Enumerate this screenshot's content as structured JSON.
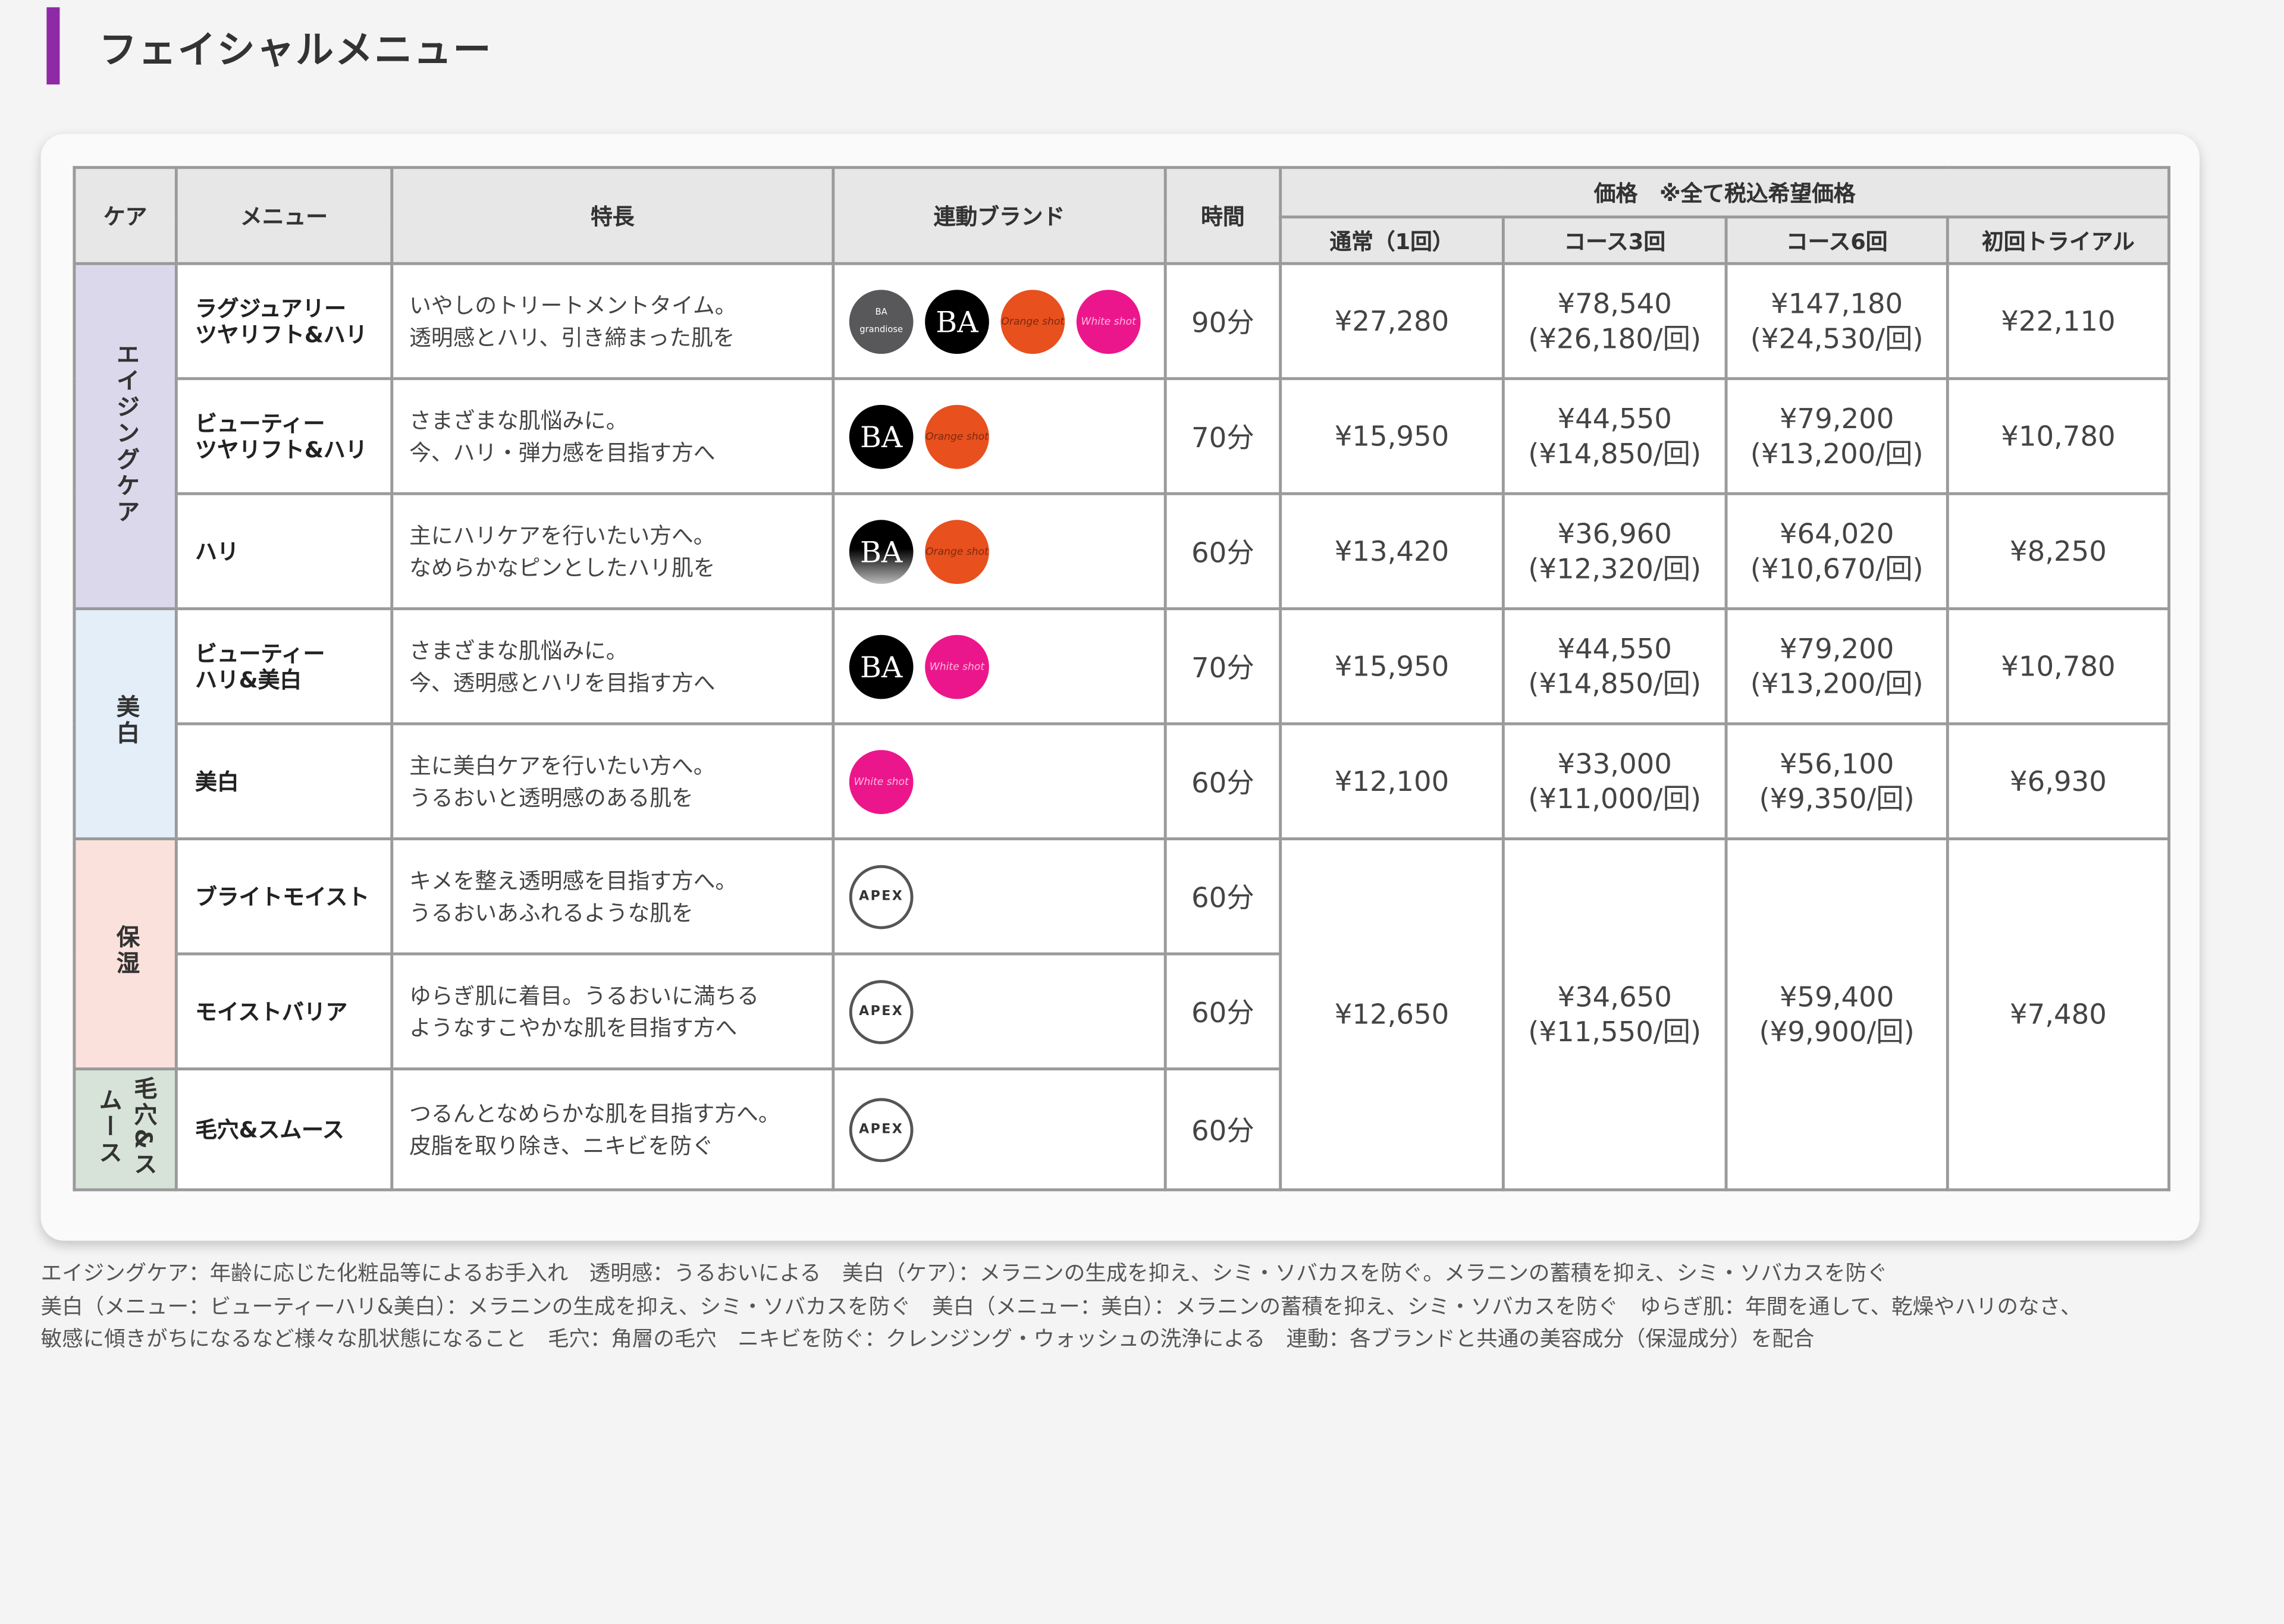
{
  "page_title": "フェイシャルメニュー",
  "colors": {
    "accent": "#8e2aa6",
    "aging": "#dcd8ec",
    "whitening": "#e3eef9",
    "moisture": "#fbe1dc",
    "pore": "#d7e3d9",
    "header": "#e7e7e7"
  },
  "headers": {
    "care": "ケア",
    "menu": "メニュー",
    "feature": "特長",
    "brand": "連動ブランド",
    "time": "時間",
    "price": "価格　※全て税込希望価格",
    "regular": "通常（1回）",
    "course3": "コース3回",
    "course6": "コース6回",
    "trial": "初回トライアル"
  },
  "categories": [
    {
      "label": "エイジングケア"
    },
    {
      "label": "美白"
    },
    {
      "label": "保湿"
    },
    {
      "label": "毛穴&スムース"
    }
  ],
  "rows": [
    {
      "menu": [
        "ラグジュアリー",
        "ツヤリフト&ハリ"
      ],
      "feature": [
        "いやしのトリートメントタイム。",
        "透明感とハリ、引き締まった肌を"
      ],
      "brands": [
        "grandiose-logo",
        "ba-logo",
        "orange-logo",
        "white-shot-logo"
      ],
      "time": "90分",
      "regular": "¥27,280",
      "course3": [
        "¥78,540",
        "(¥26,180/回)"
      ],
      "course6": [
        "¥147,180",
        "(¥24,530/回)"
      ],
      "trial": "¥22,110"
    },
    {
      "menu": [
        "ビューティー",
        "ツヤリフト&ハリ"
      ],
      "feature": [
        "さまざまな肌悩みに。",
        "今、ハリ・弾力感を目指す方へ"
      ],
      "brands": [
        "ba-logo",
        "orange-logo"
      ],
      "time": "70分",
      "regular": "¥15,950",
      "course3": [
        "¥44,550",
        "(¥14,850/回)"
      ],
      "course6": [
        "¥79,200",
        "(¥13,200/回)"
      ],
      "trial": "¥10,780"
    },
    {
      "menu": [
        "ハリ"
      ],
      "feature": [
        "主にハリケアを行いたい方へ。",
        "なめらかなピンとしたハリ肌を"
      ],
      "brands": [
        "ba-logo",
        "orange-logo"
      ],
      "time": "60分",
      "regular": "¥13,420",
      "course3": [
        "¥36,960",
        "(¥12,320/回)"
      ],
      "course6": [
        "¥64,020",
        "(¥10,670/回)"
      ],
      "trial": "¥8,250"
    },
    {
      "menu": [
        "ビューティー",
        "ハリ&美白"
      ],
      "feature": [
        "さまざまな肌悩みに。",
        "今、透明感とハリを目指す方へ"
      ],
      "brands": [
        "ba-logo",
        "white-shot-logo"
      ],
      "time": "70分",
      "regular": "¥15,950",
      "course3": [
        "¥44,550",
        "(¥14,850/回)"
      ],
      "course6": [
        "¥79,200",
        "(¥13,200/回)"
      ],
      "trial": "¥10,780"
    },
    {
      "menu": [
        "美白"
      ],
      "feature": [
        "主に美白ケアを行いたい方へ。",
        "うるおいと透明感のある肌を"
      ],
      "brands": [
        "white-shot-logo"
      ],
      "time": "60分",
      "regular": "¥12,100",
      "course3": [
        "¥33,000",
        "(¥11,000/回)"
      ],
      "course6": [
        "¥56,100",
        "(¥9,350/回)"
      ],
      "trial": "¥6,930"
    },
    {
      "menu": [
        "ブライトモイスト"
      ],
      "feature": [
        "キメを整え透明感を目指す方へ。",
        "うるおいあふれるような肌を"
      ],
      "brands": [
        "apex-logo"
      ],
      "time": "60分"
    },
    {
      "menu": [
        "モイストバリア"
      ],
      "feature": [
        "ゆらぎ肌に着目。うるおいに満ちる",
        "ようなすこやかな肌を目指す方へ"
      ],
      "brands": [
        "apex-logo"
      ],
      "time": "60分"
    },
    {
      "menu": [
        "毛穴&スムース"
      ],
      "feature": [
        "つるんとなめらかな肌を目指す方へ。",
        "皮脂を取り除き、ニキビを防ぐ"
      ],
      "brands": [
        "apex-logo"
      ],
      "time": "60分"
    }
  ],
  "shared_price": {
    "regular": "¥12,650",
    "course3": [
      "¥34,650",
      "(¥11,550/回)"
    ],
    "course6": [
      "¥59,400",
      "(¥9,900/回)"
    ],
    "trial": "¥7,480"
  },
  "logo_text": {
    "ba": "BA",
    "grandiose": "grandiose",
    "orange": "Orange shot",
    "white": "White shot",
    "apex": "APEX"
  },
  "notes": [
    "エイジングケア：年齢に応じた化粧品等によるお手入れ　透明感：うるおいによる　美白（ケア）：メラニンの生成を抑え、シミ・ソバカスを防ぐ。メラニンの蓄積を抑え、シミ・ソバカスを防ぐ",
    "美白（メニュー：ビューティーハリ&美白）：メラニンの生成を抑え、シミ・ソバカスを防ぐ　美白（メニュー：美白）：メラニンの蓄積を抑え、シミ・ソバカスを防ぐ　ゆらぎ肌：年間を通して、乾燥やハリのなさ、",
    "敏感に傾きがちになるなど様々な肌状態になること　毛穴：角層の毛穴　ニキビを防ぐ：クレンジング・ウォッシュの洗浄による　連動：各ブランドと共通の美容成分（保湿成分）を配合"
  ]
}
